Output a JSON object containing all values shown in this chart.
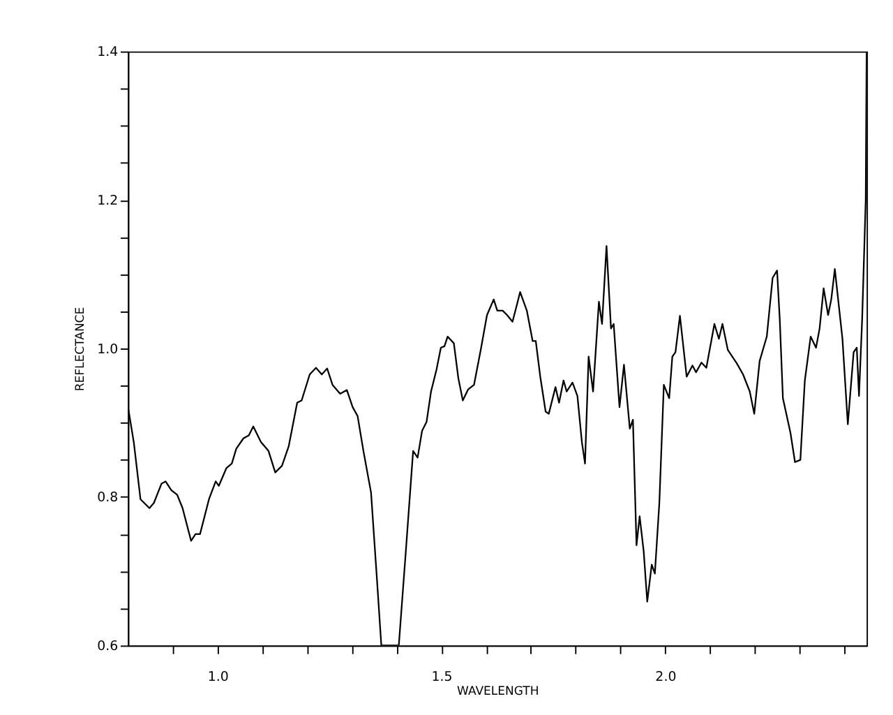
{
  "chart_data": {
    "type": "line",
    "xlabel": "WAVELENGTH",
    "ylabel": "REFLECTANCE",
    "xlim": [
      0.8,
      2.45
    ],
    "ylim": [
      0.6,
      1.4
    ],
    "xticks": [
      {
        "value": 0.9,
        "label": null
      },
      {
        "value": 1.0,
        "label": "1.0"
      },
      {
        "value": 1.1,
        "label": null
      },
      {
        "value": 1.2,
        "label": null
      },
      {
        "value": 1.3,
        "label": null
      },
      {
        "value": 1.4,
        "label": null
      },
      {
        "value": 1.5,
        "label": "1.5"
      },
      {
        "value": 1.6,
        "label": null
      },
      {
        "value": 1.7,
        "label": null
      },
      {
        "value": 1.8,
        "label": null
      },
      {
        "value": 1.9,
        "label": null
      },
      {
        "value": 2.0,
        "label": "2.0"
      },
      {
        "value": 2.1,
        "label": null
      },
      {
        "value": 2.2,
        "label": null
      },
      {
        "value": 2.3,
        "label": null
      },
      {
        "value": 2.4,
        "label": null
      }
    ],
    "yticks": [
      {
        "value": 0.6,
        "label": "0.6"
      },
      {
        "value": 0.65,
        "label": null
      },
      {
        "value": 0.7,
        "label": null
      },
      {
        "value": 0.75,
        "label": null
      },
      {
        "value": 0.8,
        "label": "0.8"
      },
      {
        "value": 0.85,
        "label": null
      },
      {
        "value": 0.9,
        "label": null
      },
      {
        "value": 0.95,
        "label": null
      },
      {
        "value": 1.0,
        "label": "1.0"
      },
      {
        "value": 1.05,
        "label": null
      },
      {
        "value": 1.1,
        "label": null
      },
      {
        "value": 1.15,
        "label": null
      },
      {
        "value": 1.2,
        "label": "1.2"
      },
      {
        "value": 1.25,
        "label": null
      },
      {
        "value": 1.3,
        "label": null
      },
      {
        "value": 1.35,
        "label": null
      },
      {
        "value": 1.4,
        "label": "1.4"
      }
    ],
    "grid": false,
    "line_style": "solid",
    "series": [
      {
        "color": "#000000",
        "x": [
          0.801,
          0.813,
          0.828,
          0.848,
          0.858,
          0.875,
          0.884,
          0.897,
          0.91,
          0.922,
          0.941,
          0.951,
          0.961,
          0.981,
          0.996,
          1.003,
          1.02,
          1.032,
          1.042,
          1.058,
          1.07,
          1.08,
          1.097,
          1.114,
          1.129,
          1.144,
          1.159,
          1.178,
          1.188,
          1.206,
          1.22,
          1.233,
          1.245,
          1.257,
          1.274,
          1.289,
          1.302,
          1.313,
          1.326,
          1.343,
          1.356,
          1.366,
          1.405,
          1.42,
          1.437,
          1.447,
          1.457,
          1.467,
          1.477,
          1.489,
          1.499,
          1.507,
          1.514,
          1.528,
          1.538,
          1.548,
          1.56,
          1.573,
          1.588,
          1.602,
          1.617,
          1.625,
          1.637,
          1.647,
          1.659,
          1.668,
          1.676,
          1.691,
          1.704,
          1.711,
          1.721,
          1.733,
          1.74,
          1.755,
          1.763,
          1.773,
          1.78,
          1.793,
          1.804,
          1.814,
          1.821,
          1.829,
          1.839,
          1.852,
          1.859,
          1.869,
          1.879,
          1.885,
          1.898,
          1.908,
          1.921,
          1.928,
          1.936,
          1.943,
          1.952,
          1.96,
          1.97,
          1.977,
          1.987,
          1.997,
          2.009,
          2.016,
          2.023,
          2.033,
          2.048,
          2.061,
          2.069,
          2.081,
          2.092,
          2.11,
          2.12,
          2.128,
          2.14,
          2.16,
          2.174,
          2.189,
          2.199,
          2.211,
          2.227,
          2.24,
          2.25,
          2.256,
          2.263,
          2.28,
          2.29,
          2.302,
          2.312,
          2.325,
          2.337,
          2.345,
          2.354,
          2.364,
          2.371,
          2.379,
          2.396,
          2.408,
          2.421,
          2.428,
          2.433,
          2.44,
          2.448,
          2.45
        ],
        "values": [
          0.918,
          0.874,
          0.797,
          0.785,
          0.792,
          0.818,
          0.821,
          0.809,
          0.803,
          0.785,
          0.741,
          0.75,
          0.75,
          0.797,
          0.821,
          0.815,
          0.839,
          0.845,
          0.865,
          0.879,
          0.883,
          0.895,
          0.874,
          0.862,
          0.833,
          0.842,
          0.868,
          0.927,
          0.93,
          0.965,
          0.974,
          0.965,
          0.973,
          0.951,
          0.939,
          0.944,
          0.921,
          0.909,
          0.862,
          0.806,
          0.691,
          0.6,
          0.6,
          0.721,
          0.862,
          0.853,
          0.889,
          0.901,
          0.942,
          0.971,
          1.001,
          1.003,
          1.016,
          1.007,
          0.96,
          0.93,
          0.945,
          0.951,
          0.998,
          1.045,
          1.066,
          1.051,
          1.051,
          1.045,
          1.036,
          1.057,
          1.076,
          1.051,
          1.01,
          1.01,
          0.962,
          0.915,
          0.912,
          0.948,
          0.927,
          0.957,
          0.942,
          0.954,
          0.936,
          0.874,
          0.845,
          0.989,
          0.942,
          1.063,
          1.033,
          1.138,
          1.027,
          1.033,
          0.921,
          0.978,
          0.892,
          0.904,
          0.735,
          0.774,
          0.727,
          0.659,
          0.709,
          0.697,
          0.792,
          0.951,
          0.933,
          0.989,
          0.995,
          1.044,
          0.962,
          0.977,
          0.968,
          0.981,
          0.974,
          1.033,
          1.013,
          1.033,
          0.998,
          0.98,
          0.965,
          0.942,
          0.912,
          0.983,
          1.016,
          1.095,
          1.105,
          1.039,
          0.933,
          0.886,
          0.847,
          0.85,
          0.957,
          1.016,
          1.001,
          1.027,
          1.081,
          1.045,
          1.066,
          1.107,
          1.013,
          0.898,
          0.995,
          1.001,
          0.936,
          1.039,
          1.2,
          1.4
        ]
      }
    ]
  }
}
